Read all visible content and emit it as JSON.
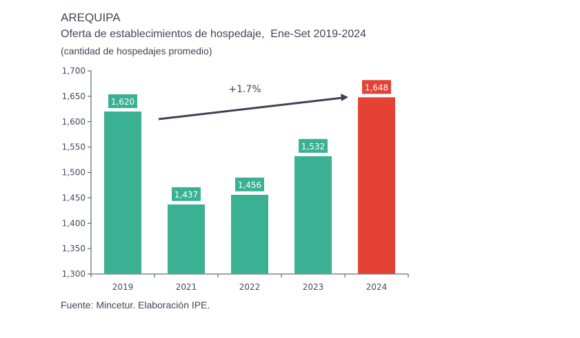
{
  "title": "AREQUIPA",
  "subtitle": "Oferta de establecimientos de hospedaje,  Ene-Set 2019-2024",
  "unit_note": "(cantidad de hospedajes promedio)",
  "source": "Fuente: Mincetur. Elaboración IPE.",
  "chart_data": {
    "type": "bar",
    "title": "Oferta de establecimientos de hospedaje,  Ene-Set 2019-2024",
    "xlabel": "",
    "ylabel": "(cantidad de hospedajes promedio)",
    "categories": [
      "2019",
      "2021",
      "2022",
      "2023",
      "2024"
    ],
    "values": [
      1620,
      1437,
      1456,
      1532,
      1648
    ],
    "value_labels": [
      "1,620",
      "1,437",
      "1,456",
      "1,532",
      "1,648"
    ],
    "ylim": [
      1300,
      1700
    ],
    "yticks": [
      1300,
      1350,
      1400,
      1450,
      1500,
      1550,
      1600,
      1650,
      1700
    ],
    "ytick_labels": [
      "1,300",
      "1,350",
      "1,400",
      "1,450",
      "1,500",
      "1,550",
      "1,600",
      "1,650",
      "1,700"
    ],
    "grid": false,
    "colors": [
      "#3bb194",
      "#3bb194",
      "#3bb194",
      "#3bb194",
      "#e34234"
    ],
    "annotation": {
      "text": "+1.7%",
      "from": "2019",
      "to": "2024",
      "arrow_color": "#3b4352"
    }
  }
}
